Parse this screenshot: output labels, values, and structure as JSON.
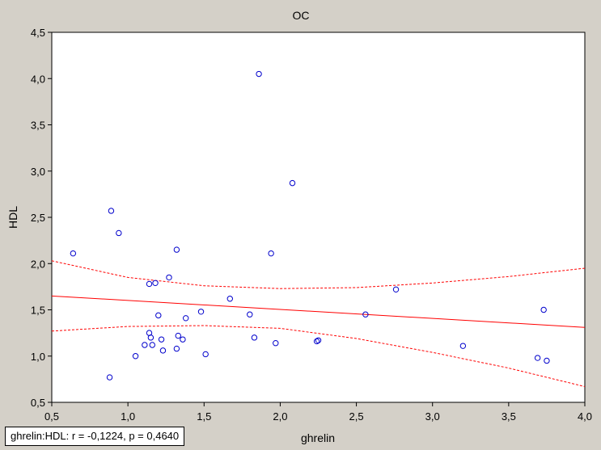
{
  "chart_data": {
    "type": "scatter",
    "title": "OC",
    "xlabel": "ghrelin",
    "ylabel": "HDL",
    "xlim": [
      0.5,
      4.0
    ],
    "ylim": [
      0.5,
      4.5
    ],
    "xticks": [
      "0,5",
      "1,0",
      "1,5",
      "2,0",
      "2,5",
      "3,0",
      "3,5",
      "4,0"
    ],
    "yticks": [
      "0,5",
      "1,0",
      "1,5",
      "2,0",
      "2,5",
      "3,0",
      "3,5",
      "4,0",
      "4,5"
    ],
    "grid": false,
    "points": [
      {
        "x": 0.64,
        "y": 2.11
      },
      {
        "x": 0.88,
        "y": 0.77
      },
      {
        "x": 0.89,
        "y": 2.57
      },
      {
        "x": 0.94,
        "y": 2.33
      },
      {
        "x": 1.05,
        "y": 1.0
      },
      {
        "x": 1.11,
        "y": 1.12
      },
      {
        "x": 1.14,
        "y": 1.25
      },
      {
        "x": 1.14,
        "y": 1.78
      },
      {
        "x": 1.15,
        "y": 1.2
      },
      {
        "x": 1.16,
        "y": 1.12
      },
      {
        "x": 1.18,
        "y": 1.79
      },
      {
        "x": 1.2,
        "y": 1.44
      },
      {
        "x": 1.22,
        "y": 1.18
      },
      {
        "x": 1.23,
        "y": 1.06
      },
      {
        "x": 1.27,
        "y": 1.85
      },
      {
        "x": 1.32,
        "y": 1.08
      },
      {
        "x": 1.32,
        "y": 2.15
      },
      {
        "x": 1.33,
        "y": 1.22
      },
      {
        "x": 1.36,
        "y": 1.18
      },
      {
        "x": 1.38,
        "y": 1.41
      },
      {
        "x": 1.48,
        "y": 1.48
      },
      {
        "x": 1.51,
        "y": 1.02
      },
      {
        "x": 1.67,
        "y": 1.62
      },
      {
        "x": 1.8,
        "y": 1.45
      },
      {
        "x": 1.83,
        "y": 1.2
      },
      {
        "x": 1.86,
        "y": 4.05
      },
      {
        "x": 1.94,
        "y": 2.11
      },
      {
        "x": 1.97,
        "y": 1.14
      },
      {
        "x": 2.08,
        "y": 2.87
      },
      {
        "x": 2.24,
        "y": 1.16
      },
      {
        "x": 2.25,
        "y": 1.17
      },
      {
        "x": 2.56,
        "y": 1.45
      },
      {
        "x": 2.76,
        "y": 1.72
      },
      {
        "x": 3.2,
        "y": 1.11
      },
      {
        "x": 3.69,
        "y": 0.98
      },
      {
        "x": 3.73,
        "y": 1.5
      },
      {
        "x": 3.75,
        "y": 0.95
      }
    ],
    "regression": {
      "x0": 0.5,
      "y0": 1.65,
      "x1": 4.0,
      "y1": 1.31
    },
    "confidence_band": {
      "x": [
        0.5,
        1.0,
        1.5,
        2.0,
        2.5,
        3.0,
        3.5,
        4.0
      ],
      "upper": [
        2.03,
        1.85,
        1.76,
        1.73,
        1.74,
        1.79,
        1.86,
        1.95
      ],
      "lower": [
        1.27,
        1.32,
        1.33,
        1.3,
        1.19,
        1.04,
        0.87,
        0.67
      ]
    },
    "colors": {
      "points": "#0000cc",
      "fit": "#ff0000",
      "band": "#ff0000"
    },
    "annotation": "ghrelin:HDL:   r = -0,1224, p = 0,4640"
  }
}
